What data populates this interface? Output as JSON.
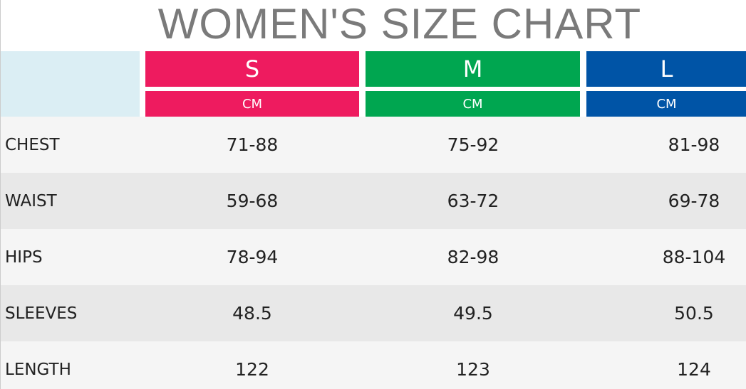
{
  "title": "WOMEN'S SIZE CHART",
  "table": {
    "columns": [
      {
        "size": "S",
        "unit": "CM"
      },
      {
        "size": "M",
        "unit": "CM"
      },
      {
        "size": "L",
        "unit": "CM"
      }
    ],
    "rows": [
      [
        "CHEST",
        "71-88",
        "75-92",
        "81-98"
      ],
      [
        "WAIST",
        "59-68",
        "63-72",
        "69-78"
      ],
      [
        "HIPS",
        "78-94",
        "82-98",
        "88-104"
      ],
      [
        "SLEEVES",
        "48.5",
        "49.5",
        "50.5"
      ],
      [
        "LENGTH",
        "122",
        "123",
        "124"
      ]
    ]
  }
}
